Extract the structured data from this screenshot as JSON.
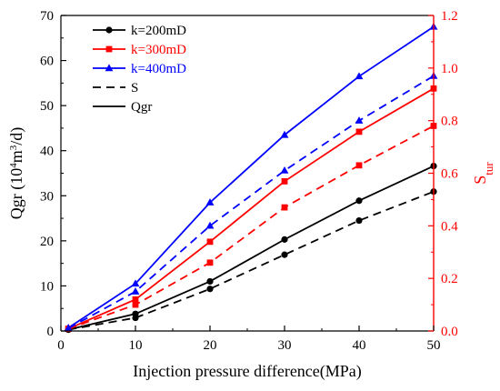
{
  "chart_data": {
    "type": "line",
    "title": "",
    "xlabel": "Injection pressure difference(MPa)",
    "ylabel_left": {
      "base": "Qgr (10",
      "sup1": "4",
      "mid": "m",
      "sup2": "3",
      "end": "/d)"
    },
    "ylabel_right": {
      "base": "S",
      "sub": "tur"
    },
    "xlim": [
      0,
      50
    ],
    "ylim_left": [
      0,
      70
    ],
    "ylim_right": [
      0,
      1.2
    ],
    "xticks": [
      0,
      10,
      20,
      30,
      40,
      50
    ],
    "yticks_left": [
      0,
      10,
      20,
      30,
      40,
      50,
      60,
      70
    ],
    "yticks_right": [
      0.0,
      0.2,
      0.4,
      0.6,
      0.8,
      1.0,
      1.2
    ],
    "right_axis_color": "#ff0000",
    "grid": false,
    "legend_placement": "top-left",
    "legend": [
      {
        "label": "k=200mD",
        "color": "#000000",
        "line": "solid",
        "marker": "circle"
      },
      {
        "label": "k=300mD",
        "color": "#ff0000",
        "line": "solid",
        "marker": "square"
      },
      {
        "label": "k=400mD",
        "color": "#0000ff",
        "line": "solid",
        "marker": "triangle"
      },
      {
        "label": "S",
        "color": "#000000",
        "line": "dashed",
        "marker": "none"
      },
      {
        "label": "Qgr",
        "color": "#000000",
        "line": "solid",
        "marker": "none"
      }
    ],
    "series": [
      {
        "name": "Qgr k=200mD",
        "axis": "left",
        "color": "#000000",
        "dash": false,
        "marker": "circle",
        "x": [
          1,
          10,
          20,
          30,
          40,
          50
        ],
        "values": [
          0.3,
          3.8,
          11.0,
          20.3,
          28.9,
          36.6
        ]
      },
      {
        "name": "Qgr k=300mD",
        "axis": "left",
        "color": "#ff0000",
        "dash": false,
        "marker": "square",
        "x": [
          1,
          10,
          20,
          30,
          40,
          50
        ],
        "values": [
          0.5,
          7.0,
          19.8,
          33.2,
          44.2,
          53.8
        ]
      },
      {
        "name": "Qgr k=400mD",
        "axis": "left",
        "color": "#0000ff",
        "dash": false,
        "marker": "triangle",
        "x": [
          1,
          10,
          20,
          30,
          40,
          50
        ],
        "values": [
          0.7,
          10.5,
          28.5,
          43.5,
          56.5,
          67.5
        ]
      },
      {
        "name": "S k=200mD",
        "axis": "right",
        "color": "#000000",
        "dash": true,
        "marker": "circle",
        "x": [
          1,
          10,
          20,
          30,
          40,
          50
        ],
        "values": [
          0.005,
          0.05,
          0.16,
          0.29,
          0.42,
          0.53
        ]
      },
      {
        "name": "S k=300mD",
        "axis": "right",
        "color": "#ff0000",
        "dash": true,
        "marker": "square",
        "x": [
          1,
          10,
          20,
          30,
          40,
          50
        ],
        "values": [
          0.008,
          0.1,
          0.26,
          0.47,
          0.63,
          0.78
        ]
      },
      {
        "name": "S k=400mD",
        "axis": "right",
        "color": "#0000ff",
        "dash": true,
        "marker": "triangle",
        "x": [
          1,
          10,
          20,
          30,
          40,
          50
        ],
        "values": [
          0.01,
          0.15,
          0.4,
          0.61,
          0.8,
          0.97
        ]
      }
    ]
  }
}
